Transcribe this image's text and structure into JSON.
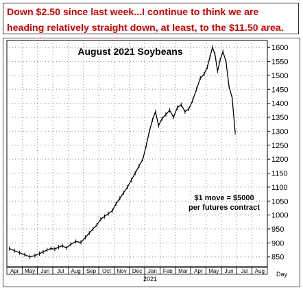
{
  "headline": {
    "line1": "Down $2.50 since last week...I continue to think we are",
    "line2": "heading relatively straight down, at least, to the $11.50 area.",
    "color": "#cc0000"
  },
  "chart_data": {
    "type": "line",
    "title": "August 2021 Soybeans",
    "xlabel": "Day",
    "ylabel": "",
    "x_tick_labels": [
      "Apr",
      "May",
      "Jun",
      "Jul",
      "Aug",
      "Sep",
      "Oct",
      "Nov",
      "Dec",
      "Jan",
      "Feb",
      "Mar",
      "Apr",
      "May",
      "Jun",
      "Jul",
      "Aug"
    ],
    "year_label": "2021",
    "y_ticks": [
      850,
      900,
      950,
      1000,
      1050,
      1100,
      1150,
      1200,
      1250,
      1300,
      1350,
      1400,
      1450,
      1500,
      1550,
      1600
    ],
    "ylim": [
      815,
      1625
    ],
    "grid": true,
    "annotation": [
      "$1 move = $5000",
      "per futures contract"
    ],
    "series": [
      {
        "points": [
          [
            "Apr",
            880
          ],
          [
            "Apr",
            872
          ],
          [
            "Apr",
            865
          ],
          [
            "May",
            858
          ],
          [
            "May",
            850
          ],
          [
            "May",
            855
          ],
          [
            "Jun",
            862
          ],
          [
            "Jun",
            868
          ],
          [
            "Jun",
            875
          ],
          [
            "Jun",
            880
          ],
          [
            "Jul",
            878
          ],
          [
            "Jul",
            885
          ],
          [
            "Jul",
            890
          ],
          [
            "Jul",
            882
          ],
          [
            "Aug",
            895
          ],
          [
            "Aug",
            905
          ],
          [
            "Aug",
            902
          ],
          [
            "Sep",
            920
          ],
          [
            "Sep",
            935
          ],
          [
            "Sep",
            950
          ],
          [
            "Sep",
            965
          ],
          [
            "Oct",
            985
          ],
          [
            "Oct",
            995
          ],
          [
            "Oct",
            1005
          ],
          [
            "Oct",
            1015
          ],
          [
            "Nov",
            1040
          ],
          [
            "Nov",
            1060
          ],
          [
            "Nov",
            1080
          ],
          [
            "Nov",
            1100
          ],
          [
            "Dec",
            1125
          ],
          [
            "Dec",
            1150
          ],
          [
            "Dec",
            1175
          ],
          [
            "Dec",
            1200
          ],
          [
            "Jan",
            1250
          ],
          [
            "Jan",
            1300
          ],
          [
            "Jan",
            1340
          ],
          [
            "Jan",
            1370
          ],
          [
            "Jan",
            1320
          ],
          [
            "Feb",
            1345
          ],
          [
            "Feb",
            1360
          ],
          [
            "Feb",
            1375
          ],
          [
            "Feb",
            1350
          ],
          [
            "Mar",
            1385
          ],
          [
            "Mar",
            1395
          ],
          [
            "Mar",
            1370
          ],
          [
            "Mar",
            1380
          ],
          [
            "Apr",
            1410
          ],
          [
            "Apr",
            1450
          ],
          [
            "Apr",
            1490
          ],
          [
            "Apr",
            1505
          ],
          [
            "May",
            1530
          ],
          [
            "May",
            1565
          ],
          [
            "May",
            1600
          ],
          [
            "May",
            1575
          ],
          [
            "May",
            1515
          ],
          [
            "May",
            1555
          ],
          [
            "Jun",
            1585
          ],
          [
            "Jun",
            1550
          ],
          [
            "Jun",
            1460
          ],
          [
            "Jun",
            1420
          ],
          [
            "Jun",
            1295
          ]
        ]
      }
    ],
    "line_color": "#000000",
    "grid_color": "#8a8a8a"
  }
}
